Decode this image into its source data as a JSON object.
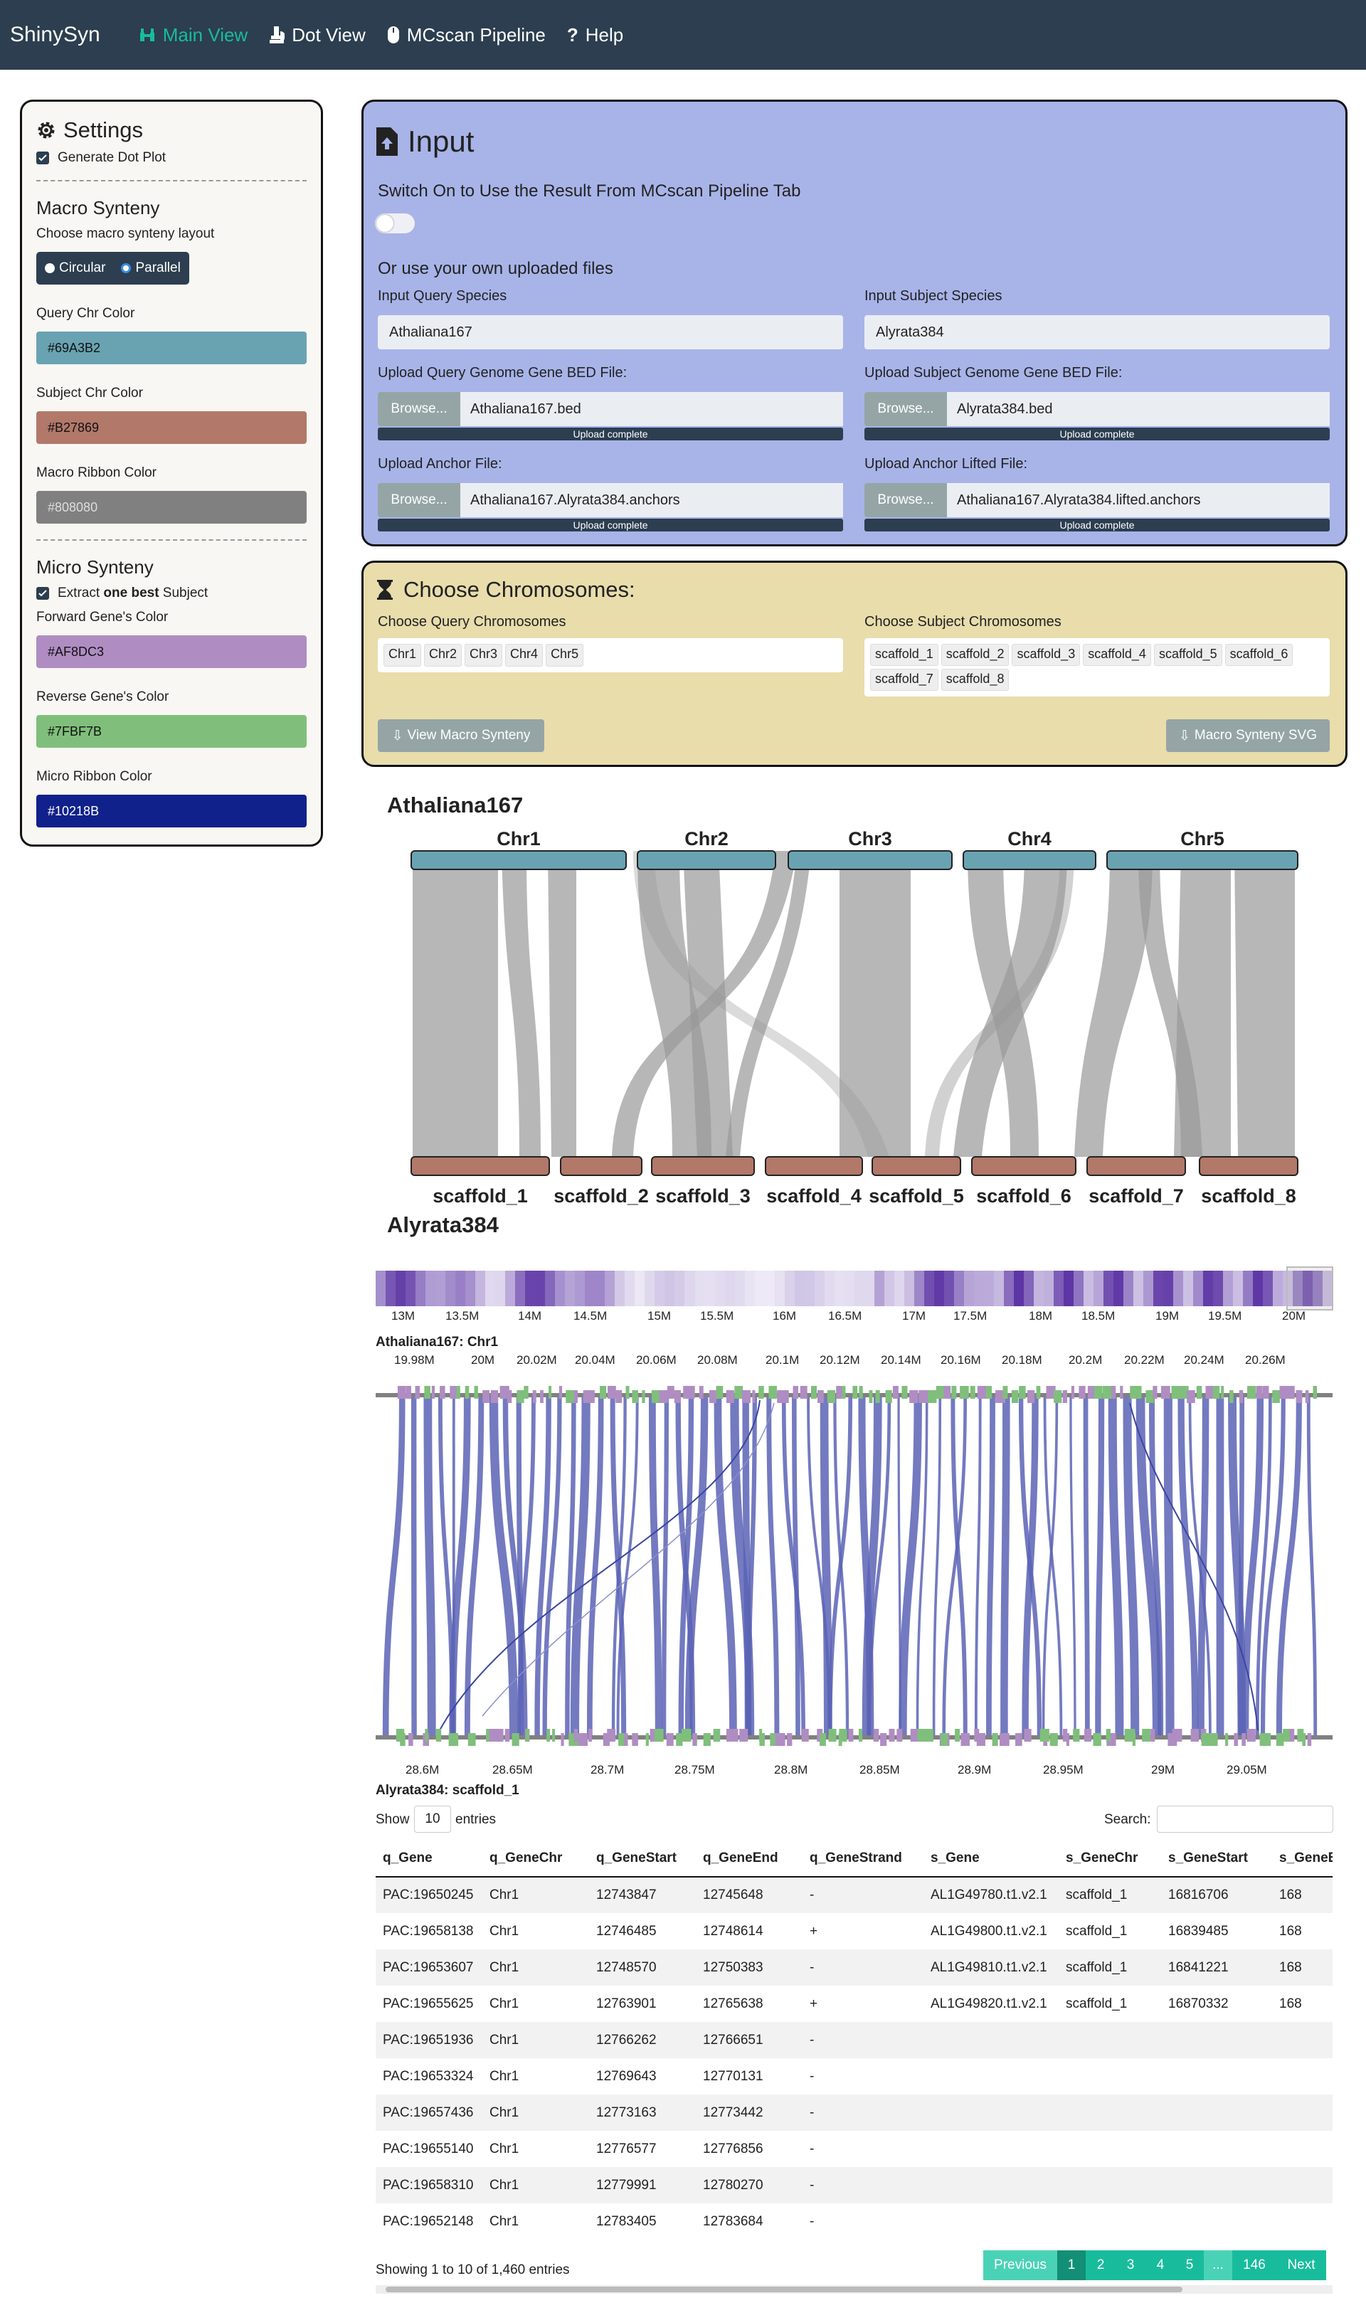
{
  "navbar": {
    "brand": "ShinySyn",
    "items": [
      {
        "label": "Main View",
        "active": true,
        "icon": "binoculars-icon"
      },
      {
        "label": "Dot View",
        "active": false,
        "icon": "microscope-icon"
      },
      {
        "label": "MCscan Pipeline",
        "active": false,
        "icon": "mouse-icon"
      },
      {
        "label": "Help",
        "active": false,
        "icon": "question-icon"
      }
    ]
  },
  "sidebar": {
    "title": "Settings",
    "generate_dot_plot": "Generate Dot Plot",
    "macro_heading": "Macro Synteny",
    "layout_label": "Choose macro synteny layout",
    "layout_options": [
      "Circular",
      "Parallel"
    ],
    "layout_selected": "Parallel",
    "query_chr_color_label": "Query Chr Color",
    "query_chr_color": "#69A3B2",
    "subject_chr_color_label": "Subject Chr Color",
    "subject_chr_color": "#B27869",
    "macro_ribbon_label": "Macro Ribbon Color",
    "macro_ribbon_color": "#808080",
    "micro_heading": "Micro Synteny",
    "extract_pre": "Extract ",
    "extract_bold": "one best",
    "extract_post": " Subject",
    "forward_label": "Forward Gene's Color",
    "forward_color": "#AF8DC3",
    "reverse_label": "Reverse Gene's Color",
    "reverse_color": "#7FBF7B",
    "micro_ribbon_label": "Micro Ribbon Color",
    "micro_ribbon_color": "#10218B"
  },
  "input": {
    "title": "Input",
    "switch_label": "Switch On to Use the Result From MCscan Pipeline Tab",
    "own_files": "Or use your own uploaded files",
    "query_species_label": "Input Query Species",
    "query_species": "Athaliana167",
    "subject_species_label": "Input Subject Species",
    "subject_species": "Alyrata384",
    "query_bed_label": "Upload Query Genome Gene BED File:",
    "query_bed": "Athaliana167.bed",
    "subject_bed_label": "Upload Subject Genome Gene BED File:",
    "subject_bed": "Alyrata384.bed",
    "anchor_label": "Upload Anchor File:",
    "anchor_file": "Athaliana167.Alyrata384.anchors",
    "anchor_lifted_label": "Upload Anchor Lifted File:",
    "anchor_lifted_file": "Athaliana167.Alyrata384.lifted.anchors",
    "browse": "Browse...",
    "upload_complete": "Upload complete"
  },
  "chromosomes": {
    "title": "Choose Chromosomes:",
    "query_label": "Choose Query Chromosomes",
    "query_chrs": [
      "Chr1",
      "Chr2",
      "Chr3",
      "Chr4",
      "Chr5"
    ],
    "subject_label": "Choose Subject Chromosomes",
    "subject_chrs": [
      "scaffold_1",
      "scaffold_2",
      "scaffold_3",
      "scaffold_4",
      "scaffold_5",
      "scaffold_6",
      "scaffold_7",
      "scaffold_8"
    ],
    "view_button": "View Macro Synteny",
    "svg_button": "Macro Synteny SVG"
  },
  "macro": {
    "query_species": "Athaliana167",
    "subject_species": "Alyrata384"
  },
  "micro": {
    "overview_ticks": [
      "13M",
      "13.5M",
      "14M",
      "14.5M",
      "15M",
      "15.5M",
      "16M",
      "16.5M",
      "17M",
      "17.5M",
      "18M",
      "18.5M",
      "19M",
      "19.5M",
      "20M"
    ],
    "query_title": "Athaliana167: Chr1",
    "query_ticks": [
      "19.98M",
      "20M",
      "20.02M",
      "20.04M",
      "20.06M",
      "20.08M",
      "20.1M",
      "20.12M",
      "20.14M",
      "20.16M",
      "20.18M",
      "20.2M",
      "20.22M",
      "20.24M",
      "20.26M"
    ],
    "subject_ticks": [
      "28.6M",
      "28.65M",
      "28.7M",
      "28.75M",
      "28.8M",
      "28.85M",
      "28.9M",
      "28.95M",
      "29M",
      "29.05M"
    ],
    "subject_title": "Alyrata384: scaffold_1"
  },
  "table": {
    "show_label": "Show",
    "entries_value": "10",
    "entries_label": "entries",
    "search_label": "Search:",
    "columns": [
      "q_Gene",
      "q_GeneChr",
      "q_GeneStart",
      "q_GeneEnd",
      "q_GeneStrand",
      "s_Gene",
      "s_GeneChr",
      "s_GeneStart",
      "s_GeneEnd"
    ],
    "rows": [
      [
        "PAC:19650245",
        "Chr1",
        "12743847",
        "12745648",
        "-",
        "AL1G49780.t1.v2.1",
        "scaffold_1",
        "16816706",
        "168"
      ],
      [
        "PAC:19658138",
        "Chr1",
        "12746485",
        "12748614",
        "+",
        "AL1G49800.t1.v2.1",
        "scaffold_1",
        "16839485",
        "168"
      ],
      [
        "PAC:19653607",
        "Chr1",
        "12748570",
        "12750383",
        "-",
        "AL1G49810.t1.v2.1",
        "scaffold_1",
        "16841221",
        "168"
      ],
      [
        "PAC:19655625",
        "Chr1",
        "12763901",
        "12765638",
        "+",
        "AL1G49820.t1.v2.1",
        "scaffold_1",
        "16870332",
        "168"
      ],
      [
        "PAC:19651936",
        "Chr1",
        "12766262",
        "12766651",
        "-",
        "",
        "",
        "",
        ""
      ],
      [
        "PAC:19653324",
        "Chr1",
        "12769643",
        "12770131",
        "-",
        "",
        "",
        "",
        ""
      ],
      [
        "PAC:19657436",
        "Chr1",
        "12773163",
        "12773442",
        "-",
        "",
        "",
        "",
        ""
      ],
      [
        "PAC:19655140",
        "Chr1",
        "12776577",
        "12776856",
        "-",
        "",
        "",
        "",
        ""
      ],
      [
        "PAC:19658310",
        "Chr1",
        "12779991",
        "12780270",
        "-",
        "",
        "",
        "",
        ""
      ],
      [
        "PAC:19652148",
        "Chr1",
        "12783405",
        "12783684",
        "-",
        "",
        "",
        "",
        ""
      ]
    ],
    "info": "Showing 1 to 10 of 1,460 entries",
    "pagination": [
      "Previous",
      "1",
      "2",
      "3",
      "4",
      "5",
      "...",
      "146",
      "Next"
    ]
  }
}
